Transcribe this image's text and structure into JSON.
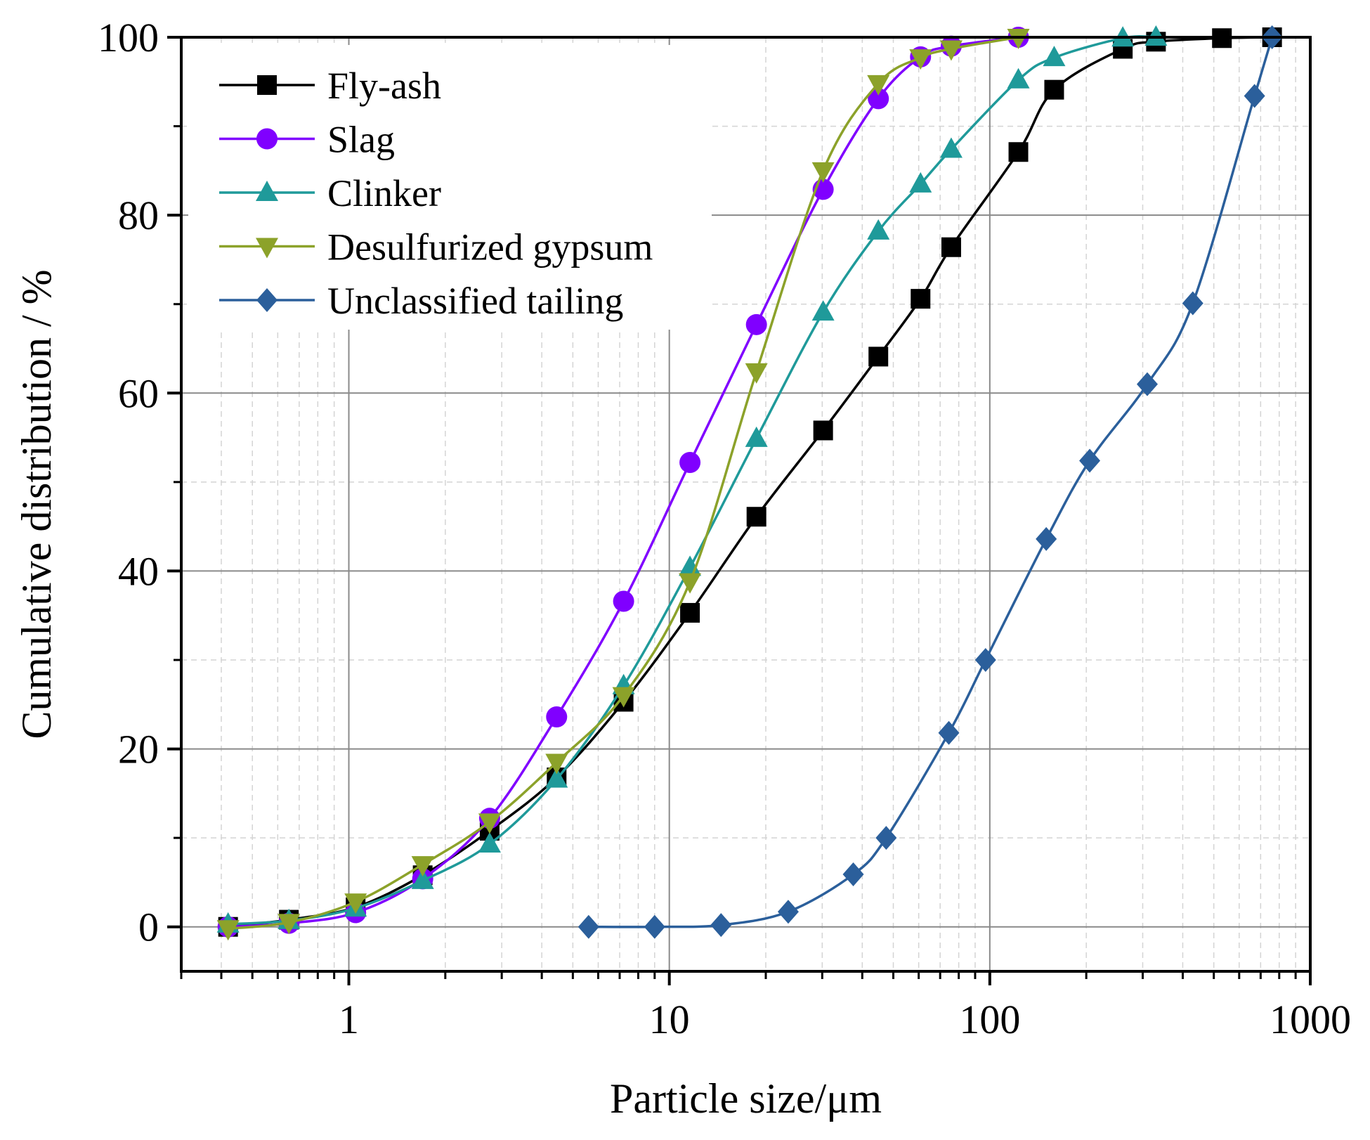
{
  "chart_data": {
    "type": "line",
    "title": "",
    "xlabel": "Particle size/μm",
    "ylabel": "Cumulative distribution / %",
    "xscale": "log",
    "xlim": [
      0.3,
      1000
    ],
    "ylim": [
      -5,
      100
    ],
    "xticks": [
      1,
      10,
      100,
      1000
    ],
    "xtick_labels": [
      "1",
      "10",
      "100",
      "1000"
    ],
    "yticks": [
      0,
      20,
      40,
      60,
      80,
      100
    ],
    "ytick_labels": [
      "0",
      "20",
      "40",
      "60",
      "80",
      "100"
    ],
    "grid": true,
    "legend_position": "top-left",
    "series": [
      {
        "name": "Fly-ash",
        "color": "#000000",
        "marker": "square",
        "x": [
          0.42,
          0.65,
          1.05,
          1.7,
          2.75,
          4.45,
          7.2,
          11.6,
          18.7,
          30.2,
          44.9,
          60.8,
          75.8,
          122.8,
          158.8,
          260,
          330,
          530,
          760
        ],
        "y": [
          0,
          0.8,
          2.2,
          5.8,
          10.8,
          16.8,
          25.3,
          35.3,
          46.1,
          55.8,
          64.1,
          70.6,
          76.4,
          87.1,
          94.1,
          98.7,
          99.5,
          99.9,
          100
        ]
      },
      {
        "name": "Slag",
        "color": "#8000ff",
        "marker": "circle",
        "x": [
          0.42,
          0.65,
          1.05,
          1.7,
          2.75,
          4.45,
          7.2,
          11.6,
          18.7,
          30.2,
          44.9,
          60.8,
          75.8,
          122.8
        ],
        "y": [
          0,
          0.4,
          1.6,
          5.4,
          12.2,
          23.6,
          36.6,
          52.2,
          67.7,
          82.9,
          93.1,
          97.8,
          99.0,
          100
        ]
      },
      {
        "name": "Clinker",
        "color": "#1f9a9a",
        "marker": "triangle-up",
        "x": [
          0.42,
          0.65,
          1.05,
          1.7,
          2.75,
          4.45,
          7.2,
          11.6,
          18.7,
          30.2,
          44.9,
          60.8,
          75.8,
          122.8,
          158.8,
          260,
          330
        ],
        "y": [
          0.3,
          0.7,
          2.1,
          5.2,
          9.3,
          16.6,
          27.1,
          40.4,
          54.9,
          69.1,
          78.2,
          83.5,
          87.4,
          95.2,
          97.7,
          99.9,
          100
        ]
      },
      {
        "name": "Desulfurized gypsum",
        "color": "#8ca22a",
        "marker": "triangle-down",
        "x": [
          0.42,
          0.65,
          1.05,
          1.7,
          2.75,
          4.45,
          7.2,
          11.6,
          18.7,
          30.2,
          44.9,
          60.8,
          75.8,
          122.8
        ],
        "y": [
          -0.2,
          0.5,
          2.8,
          7.0,
          11.8,
          18.5,
          26.0,
          38.8,
          62.4,
          85.0,
          94.8,
          97.7,
          98.7,
          100
        ]
      },
      {
        "name": "Unclassified tailing",
        "color": "#2b5f9b",
        "marker": "diamond",
        "x": [
          5.6,
          9.0,
          14.5,
          23.5,
          37.5,
          47.5,
          74.5,
          97.0,
          150,
          205,
          310,
          430,
          670,
          760
        ],
        "y": [
          0,
          0,
          0.2,
          1.7,
          5.9,
          10.0,
          21.8,
          30.0,
          43.6,
          52.4,
          61.0,
          70.1,
          93.4,
          100
        ]
      }
    ]
  }
}
